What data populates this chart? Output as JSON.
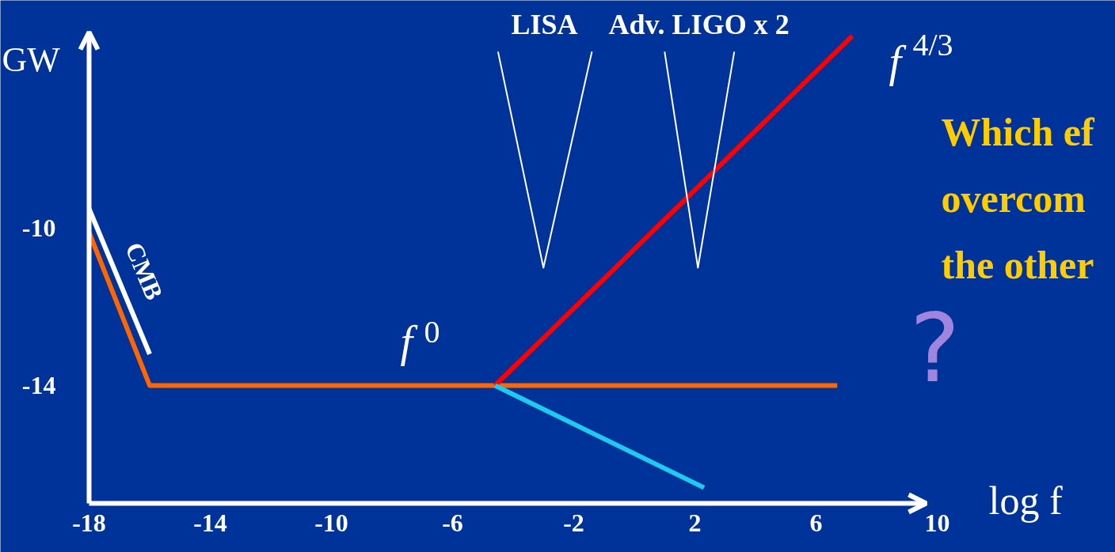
{
  "chart_data": {
    "type": "line",
    "ylabel": "GW",
    "xlabel": "log f",
    "xlim": [
      -18,
      10
    ],
    "ylim": [
      -17,
      -5
    ],
    "xticks": [
      -18,
      -14,
      -10,
      -6,
      -2,
      2,
      6,
      10
    ],
    "yticks": [
      -10,
      -14
    ],
    "grid": false,
    "marker": "none",
    "line_style": "solid",
    "series": [
      {
        "name": "CMB",
        "color": "#ffffff",
        "x": [
          -18,
          -16
        ],
        "values": [
          -9.5,
          -13.2
        ]
      },
      {
        "color": "#ff6600",
        "x": [
          -18,
          -16,
          6.7
        ],
        "values": [
          -10.1,
          -14,
          -14
        ]
      },
      {
        "color": "#ff0000",
        "x": [
          -4.6,
          7.2
        ],
        "values": [
          -14,
          -5.1
        ]
      },
      {
        "color": "#1ecbf0",
        "x": [
          -4.6,
          2.3
        ],
        "values": [
          -14,
          -16.6
        ]
      },
      {
        "name": "LISA",
        "color": "#ffffff",
        "x": [
          -4.5,
          -3.0,
          -1.4
        ],
        "values": [
          -5.5,
          -11.0,
          -5.5
        ]
      },
      {
        "name": "Adv. LIGO x 2",
        "color": "#ffffff",
        "x": [
          1.0,
          2.1,
          3.3
        ],
        "values": [
          -5.5,
          -11.0,
          -5.5
        ]
      }
    ],
    "annotations": [
      "f$^{0}$",
      "f$^{4/3}$",
      "Which ef\novercom\nthe other",
      "?"
    ]
  }
}
